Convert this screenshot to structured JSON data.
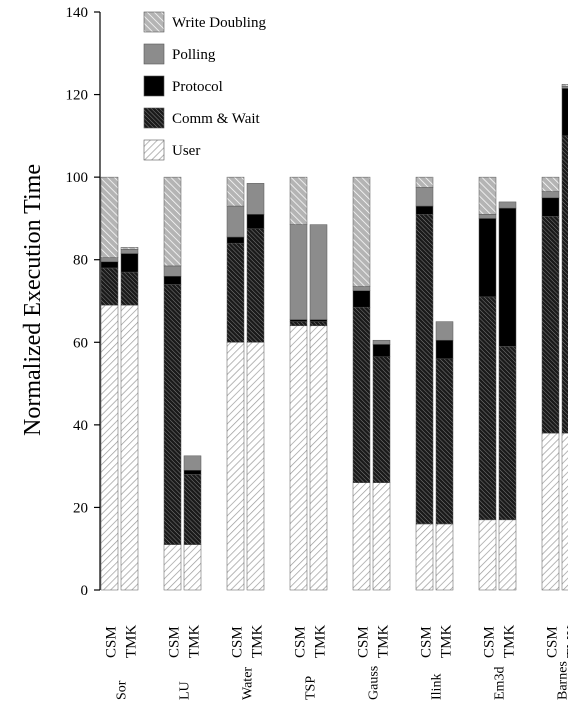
{
  "chart_data": {
    "type": "bar",
    "stacked": true,
    "ylabel": "Normalized Execution Time",
    "ylim": [
      0,
      140
    ],
    "yticks": [
      "0",
      "20",
      "40",
      "60",
      "80",
      "100",
      "120",
      "140"
    ],
    "grid": false,
    "legend_position": "top-left, inside plot",
    "legend": [
      {
        "name": "Write Doubling",
        "pattern": "light-diagonal"
      },
      {
        "name": "Polling",
        "pattern": "solid-gray"
      },
      {
        "name": "Protocol",
        "pattern": "solid-black"
      },
      {
        "name": "Comm & Wait",
        "pattern": "dense-dark-diagonal"
      },
      {
        "name": "User",
        "pattern": "sparse-diagonal"
      }
    ],
    "stack_order_bottom_to_top": [
      "User",
      "Comm & Wait",
      "Protocol",
      "Polling",
      "Write Doubling"
    ],
    "groups": [
      {
        "name": "Sor",
        "bars": [
          {
            "label": "CSM",
            "values": {
              "User": 69,
              "Comm & Wait": 9,
              "Protocol": 1.5,
              "Polling": 1,
              "Write Doubling": 19.5
            }
          },
          {
            "label": "TMK",
            "values": {
              "User": 69,
              "Comm & Wait": 8,
              "Protocol": 4.5,
              "Polling": 1,
              "Write Doubling": 0.5
            }
          }
        ]
      },
      {
        "name": "LU",
        "bars": [
          {
            "label": "CSM",
            "values": {
              "User": 11,
              "Comm & Wait": 63,
              "Protocol": 2,
              "Polling": 2.5,
              "Write Doubling": 21.5
            }
          },
          {
            "label": "TMK",
            "values": {
              "User": 11,
              "Comm & Wait": 17,
              "Protocol": 1,
              "Polling": 3.5,
              "Write Doubling": 0
            }
          }
        ]
      },
      {
        "name": "Water",
        "bars": [
          {
            "label": "CSM",
            "values": {
              "User": 60,
              "Comm & Wait": 24,
              "Protocol": 1.5,
              "Polling": 7.5,
              "Write Doubling": 7
            }
          },
          {
            "label": "TMK",
            "values": {
              "User": 60,
              "Comm & Wait": 27.5,
              "Protocol": 3.5,
              "Polling": 7.5,
              "Write Doubling": 0
            }
          }
        ]
      },
      {
        "name": "TSP",
        "bars": [
          {
            "label": "CSM",
            "values": {
              "User": 64,
              "Comm & Wait": 1,
              "Protocol": 0.5,
              "Polling": 23,
              "Write Doubling": 11.5
            }
          },
          {
            "label": "TMK",
            "values": {
              "User": 64,
              "Comm & Wait": 1,
              "Protocol": 0.5,
              "Polling": 23,
              "Write Doubling": 0
            }
          }
        ]
      },
      {
        "name": "Gauss",
        "bars": [
          {
            "label": "CSM",
            "values": {
              "User": 26,
              "Comm & Wait": 42.5,
              "Protocol": 4,
              "Polling": 1,
              "Write Doubling": 26.5
            }
          },
          {
            "label": "TMK",
            "values": {
              "User": 26,
              "Comm & Wait": 30.5,
              "Protocol": 3,
              "Polling": 1,
              "Write Doubling": 0
            }
          }
        ]
      },
      {
        "name": "Ilink",
        "bars": [
          {
            "label": "CSM",
            "values": {
              "User": 16,
              "Comm & Wait": 75,
              "Protocol": 2,
              "Polling": 4.5,
              "Write Doubling": 2.5
            }
          },
          {
            "label": "TMK",
            "values": {
              "User": 16,
              "Comm & Wait": 40,
              "Protocol": 4.5,
              "Polling": 4.5,
              "Write Doubling": 0
            }
          }
        ]
      },
      {
        "name": "Em3d",
        "bars": [
          {
            "label": "CSM",
            "values": {
              "User": 17,
              "Comm & Wait": 54,
              "Protocol": 19,
              "Polling": 1,
              "Write Doubling": 9
            }
          },
          {
            "label": "TMK",
            "values": {
              "User": 17,
              "Comm & Wait": 42,
              "Protocol": 33.5,
              "Polling": 1.5,
              "Write Doubling": 0
            }
          }
        ]
      },
      {
        "name": "Barnes",
        "bars": [
          {
            "label": "CSM",
            "values": {
              "User": 38,
              "Comm & Wait": 52.5,
              "Protocol": 4.5,
              "Polling": 1.5,
              "Write Doubling": 3.5
            }
          },
          {
            "label": "TMK",
            "values": {
              "User": 38,
              "Comm & Wait": 72,
              "Protocol": 11.5,
              "Polling": 0.5,
              "Write Doubling": 0.5
            }
          }
        ]
      }
    ]
  }
}
